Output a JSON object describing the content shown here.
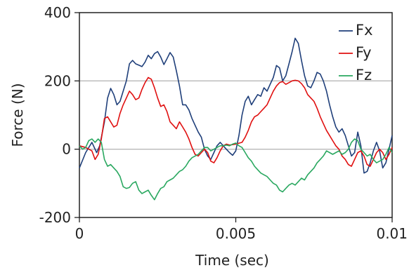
{
  "chart_data": {
    "type": "line",
    "title": "",
    "xlabel": "Time (sec)",
    "ylabel": "Force (N)",
    "xlim": [
      0,
      0.01
    ],
    "ylim": [
      -200,
      400
    ],
    "x_ticks": [
      0,
      0.005,
      0.01
    ],
    "x_tick_labels": [
      "0",
      "0.005",
      "0.01"
    ],
    "y_ticks": [
      -200,
      0,
      200,
      400
    ],
    "y_tick_labels": [
      "-200",
      "0",
      "200",
      "400"
    ],
    "grid": "horizontal",
    "legend_position": "top-right",
    "series": [
      {
        "name": "Fx",
        "color": "#1f3f7a",
        "points": [
          [
            0,
            -55
          ],
          [
            0.0002,
            -10
          ],
          [
            0.0004,
            20
          ],
          [
            0.00055,
            -10
          ],
          [
            0.00065,
            10
          ],
          [
            0.0008,
            80
          ],
          [
            0.0009,
            150
          ],
          [
            0.001,
            178
          ],
          [
            0.0011,
            160
          ],
          [
            0.0012,
            130
          ],
          [
            0.0013,
            140
          ],
          [
            0.0014,
            170
          ],
          [
            0.0015,
            200
          ],
          [
            0.0016,
            250
          ],
          [
            0.0017,
            260
          ],
          [
            0.0018,
            250
          ],
          [
            0.0019,
            246
          ],
          [
            0.002,
            242
          ],
          [
            0.0021,
            255
          ],
          [
            0.0022,
            275
          ],
          [
            0.0023,
            265
          ],
          [
            0.0024,
            280
          ],
          [
            0.0025,
            286
          ],
          [
            0.0026,
            270
          ],
          [
            0.0027,
            248
          ],
          [
            0.0028,
            265
          ],
          [
            0.0029,
            283
          ],
          [
            0.003,
            270
          ],
          [
            0.0031,
            230
          ],
          [
            0.0032,
            185
          ],
          [
            0.0033,
            130
          ],
          [
            0.0034,
            130
          ],
          [
            0.0035,
            115
          ],
          [
            0.0036,
            90
          ],
          [
            0.0037,
            70
          ],
          [
            0.0038,
            50
          ],
          [
            0.0039,
            35
          ],
          [
            0.004,
            0
          ],
          [
            0.0041,
            -20
          ],
          [
            0.0042,
            -30
          ],
          [
            0.0043,
            -10
          ],
          [
            0.0044,
            10
          ],
          [
            0.0045,
            20
          ],
          [
            0.0046,
            10
          ],
          [
            0.0047,
            0
          ],
          [
            0.0048,
            -10
          ],
          [
            0.0049,
            -18
          ],
          [
            0.005,
            -5
          ],
          [
            0.0051,
            40
          ],
          [
            0.0052,
            100
          ],
          [
            0.0053,
            140
          ],
          [
            0.0054,
            155
          ],
          [
            0.0055,
            130
          ],
          [
            0.0056,
            145
          ],
          [
            0.0057,
            160
          ],
          [
            0.0058,
            155
          ],
          [
            0.0059,
            180
          ],
          [
            0.006,
            170
          ],
          [
            0.0061,
            190
          ],
          [
            0.0062,
            210
          ],
          [
            0.0063,
            245
          ],
          [
            0.0064,
            238
          ],
          [
            0.0065,
            200
          ],
          [
            0.0066,
            215
          ],
          [
            0.0067,
            250
          ],
          [
            0.0068,
            285
          ],
          [
            0.0069,
            325
          ],
          [
            0.007,
            310
          ],
          [
            0.0071,
            260
          ],
          [
            0.0072,
            215
          ],
          [
            0.0073,
            185
          ],
          [
            0.0074,
            180
          ],
          [
            0.0075,
            200
          ],
          [
            0.0076,
            225
          ],
          [
            0.0077,
            220
          ],
          [
            0.0078,
            200
          ],
          [
            0.0079,
            170
          ],
          [
            0.008,
            130
          ],
          [
            0.0081,
            95
          ],
          [
            0.0082,
            65
          ],
          [
            0.0083,
            50
          ],
          [
            0.0084,
            60
          ],
          [
            0.0085,
            40
          ],
          [
            0.0086,
            10
          ],
          [
            0.0087,
            -20
          ],
          [
            0.0088,
            -10
          ],
          [
            0.0089,
            50
          ],
          [
            0.009,
            10
          ],
          [
            0.0091,
            -70
          ],
          [
            0.0092,
            -65
          ],
          [
            0.0093,
            -40
          ],
          [
            0.0094,
            -5
          ],
          [
            0.0095,
            20
          ],
          [
            0.0096,
            -5
          ],
          [
            0.0097,
            -55
          ],
          [
            0.0098,
            -40
          ],
          [
            0.0099,
            0
          ],
          [
            0.01,
            40
          ]
        ]
      },
      {
        "name": "Fy",
        "color": "#e01010",
        "points": [
          [
            0,
            10
          ],
          [
            0.0002,
            5
          ],
          [
            0.0004,
            -5
          ],
          [
            0.0005,
            -30
          ],
          [
            0.0006,
            -15
          ],
          [
            0.0007,
            30
          ],
          [
            0.0008,
            90
          ],
          [
            0.0009,
            95
          ],
          [
            0.001,
            80
          ],
          [
            0.0011,
            65
          ],
          [
            0.0012,
            70
          ],
          [
            0.0013,
            105
          ],
          [
            0.0014,
            130
          ],
          [
            0.0015,
            150
          ],
          [
            0.0016,
            170
          ],
          [
            0.0017,
            160
          ],
          [
            0.0018,
            145
          ],
          [
            0.0019,
            150
          ],
          [
            0.002,
            175
          ],
          [
            0.0021,
            195
          ],
          [
            0.0022,
            210
          ],
          [
            0.0023,
            205
          ],
          [
            0.0024,
            180
          ],
          [
            0.0025,
            150
          ],
          [
            0.0026,
            125
          ],
          [
            0.0027,
            130
          ],
          [
            0.0028,
            110
          ],
          [
            0.0029,
            80
          ],
          [
            0.003,
            70
          ],
          [
            0.0031,
            60
          ],
          [
            0.0032,
            80
          ],
          [
            0.0033,
            65
          ],
          [
            0.0034,
            50
          ],
          [
            0.0035,
            30
          ],
          [
            0.0036,
            5
          ],
          [
            0.0037,
            -15
          ],
          [
            0.0038,
            -20
          ],
          [
            0.0039,
            -10
          ],
          [
            0.004,
            0
          ],
          [
            0.0041,
            -10
          ],
          [
            0.0042,
            -35
          ],
          [
            0.0043,
            -40
          ],
          [
            0.0044,
            -25
          ],
          [
            0.0045,
            -5
          ],
          [
            0.0046,
            10
          ],
          [
            0.0047,
            15
          ],
          [
            0.0048,
            12
          ],
          [
            0.005,
            15
          ],
          [
            0.0052,
            20
          ],
          [
            0.0053,
            35
          ],
          [
            0.0054,
            55
          ],
          [
            0.0055,
            80
          ],
          [
            0.0056,
            95
          ],
          [
            0.0057,
            100
          ],
          [
            0.0058,
            110
          ],
          [
            0.0059,
            120
          ],
          [
            0.006,
            130
          ],
          [
            0.0061,
            150
          ],
          [
            0.0062,
            170
          ],
          [
            0.0063,
            185
          ],
          [
            0.0064,
            195
          ],
          [
            0.0065,
            198
          ],
          [
            0.0066,
            190
          ],
          [
            0.0067,
            195
          ],
          [
            0.0068,
            200
          ],
          [
            0.0069,
            202
          ],
          [
            0.007,
            200
          ],
          [
            0.0071,
            192
          ],
          [
            0.0072,
            180
          ],
          [
            0.0073,
            160
          ],
          [
            0.0074,
            150
          ],
          [
            0.0075,
            140
          ],
          [
            0.0076,
            120
          ],
          [
            0.0077,
            95
          ],
          [
            0.0078,
            75
          ],
          [
            0.0079,
            55
          ],
          [
            0.008,
            40
          ],
          [
            0.0081,
            25
          ],
          [
            0.0082,
            10
          ],
          [
            0.0083,
            0
          ],
          [
            0.0084,
            -20
          ],
          [
            0.0085,
            -30
          ],
          [
            0.0086,
            -45
          ],
          [
            0.0087,
            -50
          ],
          [
            0.0088,
            -30
          ],
          [
            0.0089,
            -10
          ],
          [
            0.009,
            -5
          ],
          [
            0.0091,
            -20
          ],
          [
            0.0092,
            -45
          ],
          [
            0.0093,
            -50
          ],
          [
            0.0094,
            -30
          ],
          [
            0.0095,
            -10
          ],
          [
            0.0096,
            0
          ],
          [
            0.0097,
            -10
          ],
          [
            0.0098,
            -30
          ],
          [
            0.0099,
            -15
          ],
          [
            0.01,
            5
          ]
        ]
      },
      {
        "name": "Fz",
        "color": "#2aa860",
        "points": [
          [
            0,
            10
          ],
          [
            0.0001,
            0
          ],
          [
            0.0002,
            5
          ],
          [
            0.0003,
            25
          ],
          [
            0.0004,
            30
          ],
          [
            0.0005,
            20
          ],
          [
            0.0006,
            30
          ],
          [
            0.0007,
            20
          ],
          [
            0.0008,
            -30
          ],
          [
            0.0009,
            -50
          ],
          [
            0.001,
            -45
          ],
          [
            0.0011,
            -55
          ],
          [
            0.0012,
            -65
          ],
          [
            0.0013,
            -80
          ],
          [
            0.0014,
            -110
          ],
          [
            0.0015,
            -115
          ],
          [
            0.0016,
            -112
          ],
          [
            0.0017,
            -100
          ],
          [
            0.0018,
            -95
          ],
          [
            0.0019,
            -120
          ],
          [
            0.002,
            -130
          ],
          [
            0.0021,
            -125
          ],
          [
            0.0022,
            -120
          ],
          [
            0.0023,
            -135
          ],
          [
            0.0024,
            -148
          ],
          [
            0.0025,
            -130
          ],
          [
            0.0026,
            -115
          ],
          [
            0.0027,
            -110
          ],
          [
            0.0028,
            -95
          ],
          [
            0.0029,
            -90
          ],
          [
            0.003,
            -85
          ],
          [
            0.0031,
            -75
          ],
          [
            0.0032,
            -65
          ],
          [
            0.0033,
            -60
          ],
          [
            0.0034,
            -50
          ],
          [
            0.0035,
            -35
          ],
          [
            0.0036,
            -25
          ],
          [
            0.0037,
            -20
          ],
          [
            0.0038,
            -15
          ],
          [
            0.0039,
            -5
          ],
          [
            0.004,
            5
          ],
          [
            0.0041,
            5
          ],
          [
            0.0042,
            -5
          ],
          [
            0.0043,
            0
          ],
          [
            0.0044,
            5
          ],
          [
            0.0045,
            10
          ],
          [
            0.0046,
            10
          ],
          [
            0.0047,
            12
          ],
          [
            0.0048,
            10
          ],
          [
            0.0049,
            15
          ],
          [
            0.005,
            18
          ],
          [
            0.0051,
            10
          ],
          [
            0.0052,
            5
          ],
          [
            0.0053,
            -10
          ],
          [
            0.0054,
            -25
          ],
          [
            0.0055,
            -35
          ],
          [
            0.0056,
            -50
          ],
          [
            0.0057,
            -60
          ],
          [
            0.0058,
            -70
          ],
          [
            0.0059,
            -75
          ],
          [
            0.006,
            -80
          ],
          [
            0.0061,
            -90
          ],
          [
            0.0062,
            -100
          ],
          [
            0.0063,
            -105
          ],
          [
            0.0064,
            -120
          ],
          [
            0.0065,
            -125
          ],
          [
            0.0066,
            -115
          ],
          [
            0.0067,
            -105
          ],
          [
            0.0068,
            -100
          ],
          [
            0.0069,
            -105
          ],
          [
            0.007,
            -95
          ],
          [
            0.0071,
            -85
          ],
          [
            0.0072,
            -90
          ],
          [
            0.0073,
            -75
          ],
          [
            0.0074,
            -65
          ],
          [
            0.0075,
            -55
          ],
          [
            0.0076,
            -40
          ],
          [
            0.0077,
            -30
          ],
          [
            0.0078,
            -20
          ],
          [
            0.0079,
            -5
          ],
          [
            0.008,
            -10
          ],
          [
            0.0081,
            -15
          ],
          [
            0.0082,
            -10
          ],
          [
            0.0083,
            -5
          ],
          [
            0.0084,
            -15
          ],
          [
            0.0085,
            -10
          ],
          [
            0.0086,
            0
          ],
          [
            0.0087,
            20
          ],
          [
            0.0088,
            30
          ],
          [
            0.0089,
            25
          ],
          [
            0.009,
            0
          ],
          [
            0.0091,
            -10
          ],
          [
            0.0092,
            -20
          ],
          [
            0.0093,
            -15
          ],
          [
            0.0094,
            -30
          ],
          [
            0.0095,
            -40
          ],
          [
            0.0096,
            -35
          ],
          [
            0.0097,
            -30
          ],
          [
            0.0098,
            -15
          ],
          [
            0.0099,
            5
          ],
          [
            0.01,
            -10
          ]
        ]
      }
    ]
  }
}
